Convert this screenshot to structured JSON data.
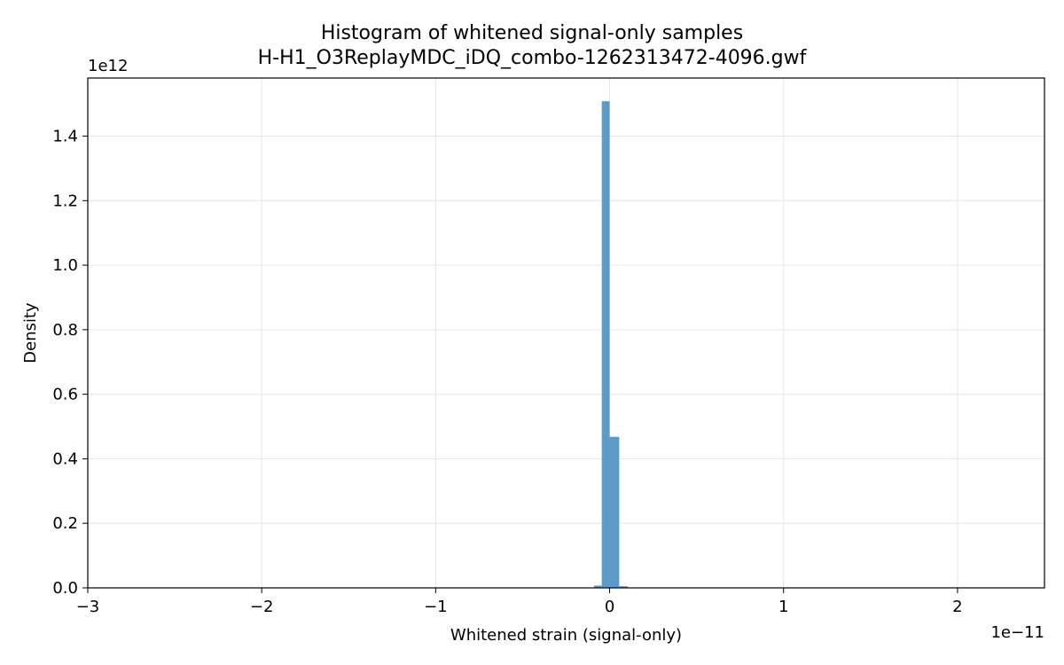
{
  "chart_data": {
    "type": "bar",
    "title": "Histogram of whitened signal-only samples",
    "subtitle": "H-H1_O3ReplayMDC_iDQ_combo-1262313472-4096.gwf",
    "xlabel": "Whitened strain (signal-only)",
    "ylabel": "Density",
    "x_offset_text": "1e−11",
    "y_offset_text": "1e12",
    "xlim": [
      -3.0,
      2.5
    ],
    "ylim": [
      0,
      1.58
    ],
    "xticks": [
      -3,
      -2,
      -1,
      0,
      1,
      2
    ],
    "xtick_labels": [
      "−3",
      "−2",
      "−1",
      "0",
      "1",
      "2"
    ],
    "yticks": [
      0.0,
      0.2,
      0.4,
      0.6,
      0.8,
      1.0,
      1.2,
      1.4
    ],
    "ytick_labels": [
      "0.0",
      "0.2",
      "0.4",
      "0.6",
      "0.8",
      "1.0",
      "1.2",
      "1.4"
    ],
    "grid": true,
    "bar_color": "#5b9bc8",
    "bins": [
      {
        "x0": -0.09,
        "x1": -0.045,
        "density": 0.007
      },
      {
        "x0": -0.045,
        "x1": 0.0,
        "density": 1.508
      },
      {
        "x0": 0.0,
        "x1": 0.055,
        "density": 0.468
      },
      {
        "x0": 0.055,
        "x1": 0.105,
        "density": 0.005
      }
    ]
  }
}
